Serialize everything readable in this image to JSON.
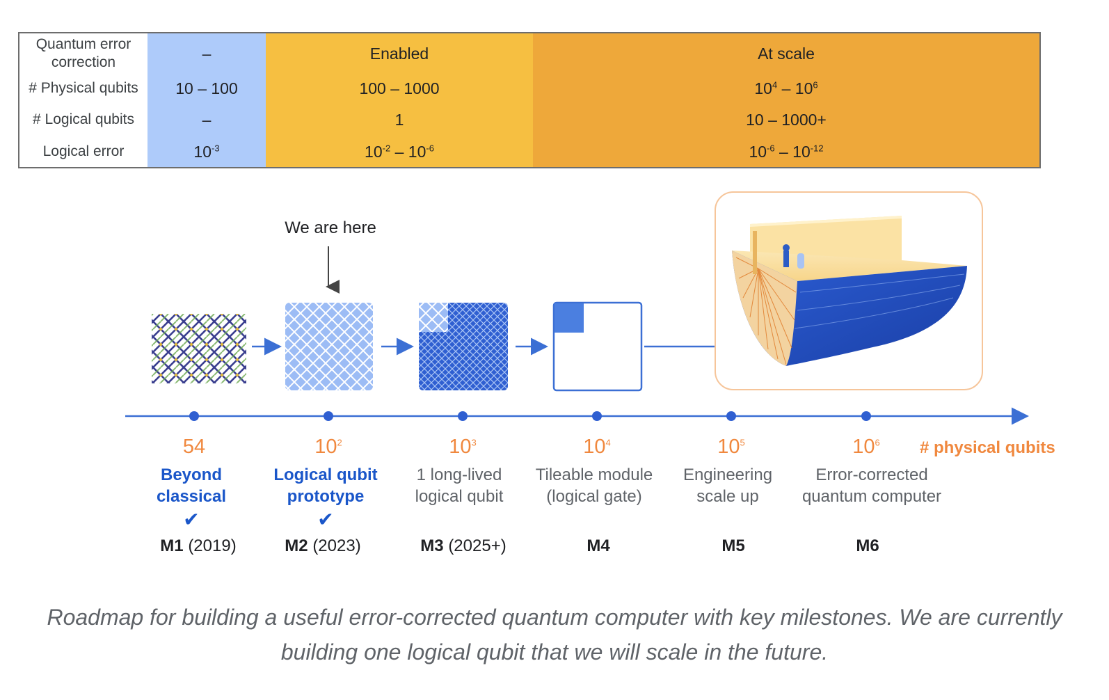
{
  "table": {
    "rows": [
      {
        "label": "Quantum error correction",
        "c1": "–",
        "c2": "Enabled",
        "c3": "At scale"
      },
      {
        "label": "# Physical qubits",
        "c1": "10 – 100",
        "c2": "100 – 1000",
        "c3": {
          "base1": "10",
          "exp1": "4",
          "sep": " – ",
          "base2": "10",
          "exp2": "6"
        }
      },
      {
        "label": "# Logical qubits",
        "c1": "–",
        "c2": "1",
        "c3": "10 – 1000+"
      },
      {
        "label": "Logical error",
        "c1": {
          "base1": "10",
          "exp1": "-3"
        },
        "c2": {
          "base1": "10",
          "exp1": "-2",
          "sep": " – ",
          "base2": "10",
          "exp2": "-6"
        },
        "c3": {
          "base1": "10",
          "exp1": "-6",
          "sep": " – ",
          "base2": "10",
          "exp2": "-12"
        }
      }
    ]
  },
  "pointer_label": "We are here",
  "axis_label": "# physical qubits",
  "milestones": [
    {
      "qubits_base": "54",
      "qubits_exp": "",
      "name_line1": "Beyond",
      "name_line2": "classical",
      "achieved": true,
      "code": "M1",
      "year": "(2019)"
    },
    {
      "qubits_base": "10",
      "qubits_exp": "2",
      "name_line1": "Logical qubit",
      "name_line2": "prototype",
      "achieved": true,
      "code": "M2",
      "year": "(2023)"
    },
    {
      "qubits_base": "10",
      "qubits_exp": "3",
      "name_line1": "1 long-lived",
      "name_line2": "logical qubit",
      "achieved": false,
      "code": "M3",
      "year": "(2025+)"
    },
    {
      "qubits_base": "10",
      "qubits_exp": "4",
      "name_line1": "Tileable module",
      "name_line2": "(logical gate)",
      "achieved": false,
      "code": "M4",
      "year": ""
    },
    {
      "qubits_base": "10",
      "qubits_exp": "5",
      "name_line1": "Engineering",
      "name_line2": "scale up",
      "achieved": false,
      "code": "M5",
      "year": ""
    },
    {
      "qubits_base": "10",
      "qubits_exp": "6",
      "name_line1": "Error-corrected",
      "name_line2": "quantum computer",
      "achieved": false,
      "code": "M6",
      "year": ""
    }
  ],
  "check_mark": "✔",
  "colors": {
    "blue_accent": "#1a56c9",
    "axis_blue": "#3b6fd4",
    "orange": "#f0883e",
    "light_blue": "#aecbfa",
    "yellow": "#f6bf41",
    "amber": "#eea83a"
  },
  "caption": "Roadmap for building a useful error-corrected quantum computer with key milestones. We are currently building one logical qubit that we will scale in the future."
}
